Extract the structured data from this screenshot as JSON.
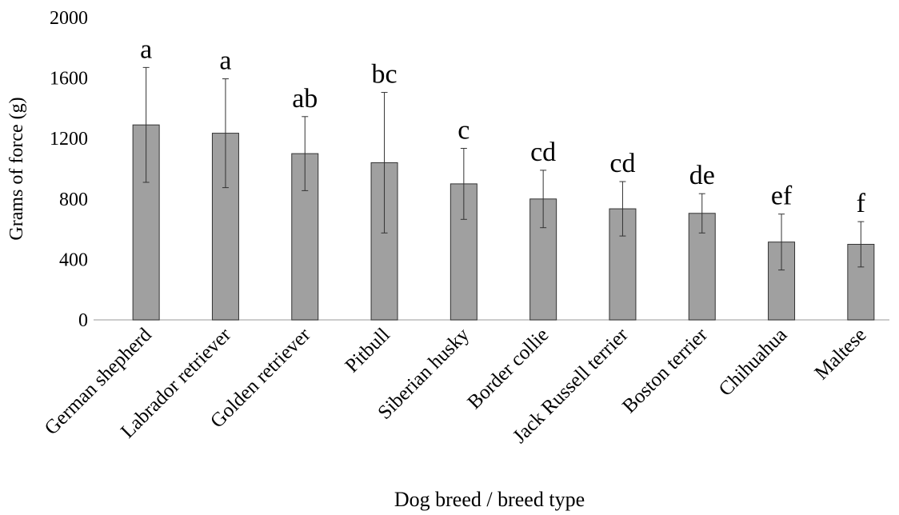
{
  "chart_data": {
    "type": "bar",
    "x_label": "Dog breed / breed type",
    "y_label": "Grams of force (g)",
    "categories": [
      "German shepherd",
      "Labrador retriever",
      "Golden retriever",
      "Pitbull",
      "Siberian husky",
      "Border collie",
      "Jack Russell terrier",
      "Boston terrier",
      "Chihuahua",
      "Maltese"
    ],
    "values": [
      1290,
      1235,
      1100,
      1040,
      900,
      800,
      735,
      705,
      515,
      500
    ],
    "errors": [
      380,
      360,
      245,
      465,
      235,
      190,
      180,
      130,
      185,
      150
    ],
    "significance_labels": [
      "a",
      "a",
      "ab",
      "bc",
      "c",
      "cd",
      "cd",
      "de",
      "ef",
      "f"
    ],
    "color": "#a0a0a0",
    "ylim": [
      0,
      2000
    ],
    "yticks": [
      0,
      400,
      800,
      1200,
      1600,
      2000
    ],
    "grid": false
  }
}
